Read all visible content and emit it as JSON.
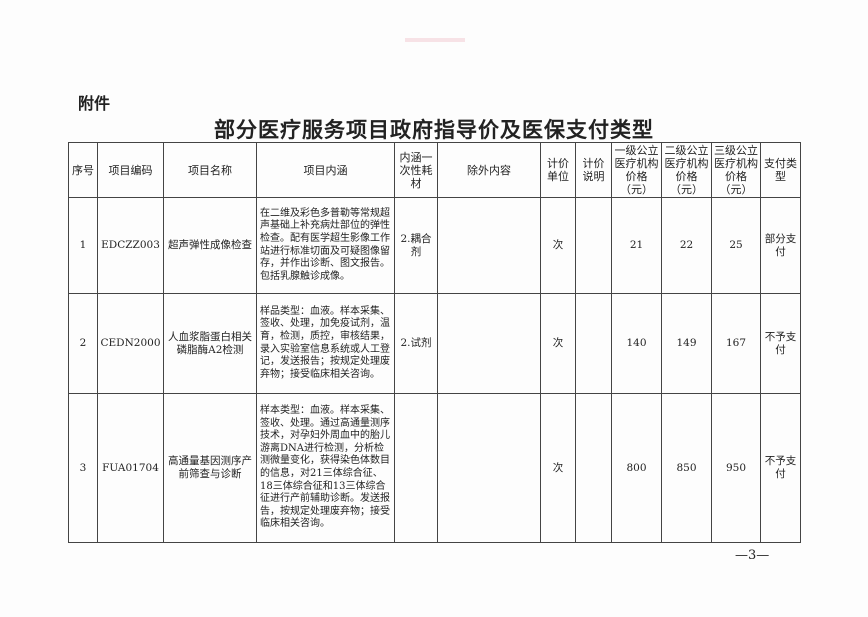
{
  "attachment_label": "附件",
  "title": "部分医疗服务项目政府指导价及医保支付类型",
  "headers": [
    "序号",
    "项目编码",
    "项目名称",
    "项目内涵",
    "内涵一次性耗材",
    "除外内容",
    "计价单位",
    "计价说明",
    "一级公立医疗机构价格（元）",
    "二级公立医疗机构价格（元）",
    "三级公立医疗机构价格（元）",
    "支付类型"
  ],
  "rows": [
    {
      "no": "1",
      "code": "EDCZZ003",
      "name": "超声弹性成像检查",
      "content": "在二维及彩色多普勒等常规超声基础上补充病灶部位的弹性检查。配有医学超生影像工作站进行标准切面及可疑图像留存，并作出诊断、图文报告。包括乳腺触诊成像。",
      "consumable": "2.耦合剂",
      "exclusion": "",
      "unit": "次",
      "note": "",
      "price1": "21",
      "price2": "22",
      "price3": "25",
      "pay": "部分支付"
    },
    {
      "no": "2",
      "code": "CEDN2000",
      "name": "人血浆脂蛋白相关磷脂酶A2检测",
      "content": "样品类型：血液。样本采集、签收、处理，加免疫试剂，温育，检测，质控，审核结果，录入实验室信息系统或人工登记，发送报告；按规定处理废弃物；接受临床相关咨询。",
      "consumable": "2.试剂",
      "exclusion": "",
      "unit": "次",
      "note": "",
      "price1": "140",
      "price2": "149",
      "price3": "167",
      "pay": "不予支付"
    },
    {
      "no": "3",
      "code": "FUA01704",
      "name": "高通量基因测序产前筛查与诊断",
      "content": "样本类型：血液。样本采集、签收、处理。通过高通量测序技术，对孕妇外周血中的胎儿游离DNA进行检测，分析检测微量变化，获得染色体数目的信息，对21三体综合征、18三体综合征和13三体综合征进行产前辅助诊断。发送报告，按规定处理废弃物；接受临床相关咨询。",
      "consumable": "",
      "exclusion": "",
      "unit": "次",
      "note": "",
      "price1": "800",
      "price2": "850",
      "price3": "950",
      "pay": "不予支付"
    }
  ],
  "page_number": "—3—"
}
